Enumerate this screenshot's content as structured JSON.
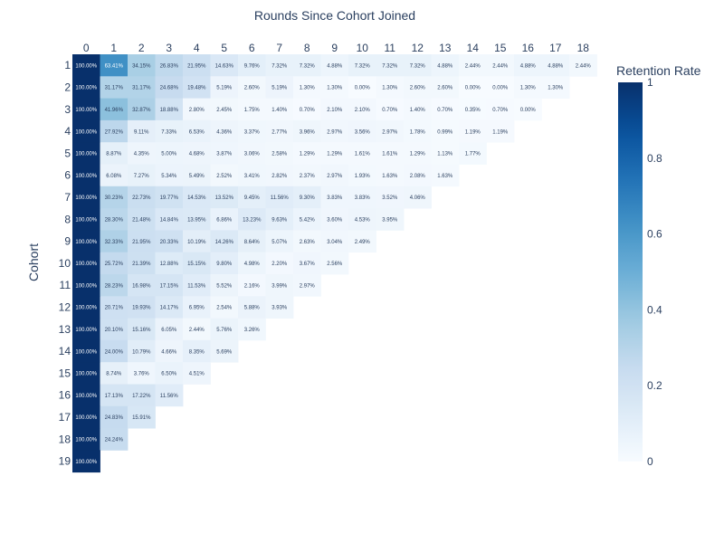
{
  "chart_data": {
    "type": "heatmap",
    "title": "Rounds Since Cohort Joined",
    "ylabel": "Cohort",
    "x": [
      0,
      1,
      2,
      3,
      4,
      5,
      6,
      7,
      8,
      9,
      10,
      11,
      12,
      13,
      14,
      15,
      16,
      17,
      18
    ],
    "y": [
      1,
      2,
      3,
      4,
      5,
      6,
      7,
      8,
      9,
      10,
      11,
      12,
      13,
      14,
      15,
      16,
      17,
      18,
      19
    ],
    "colorscale": "Blues",
    "colorbar": {
      "title": "Retention Rate",
      "range": [
        0,
        1
      ],
      "ticks": [
        "0",
        "0.2",
        "0.4",
        "0.6",
        "0.8",
        "1"
      ]
    },
    "labels": [
      [
        "100.00%",
        "63.41%",
        "34.15%",
        "26.83%",
        "21.95%",
        "14.63%",
        "9.76%",
        "7.32%",
        "7.32%",
        "4.88%",
        "7.32%",
        "7.32%",
        "7.32%",
        "4.88%",
        "2.44%",
        "2.44%",
        "4.88%",
        "4.88%",
        "2.44%"
      ],
      [
        "100.00%",
        "31.17%",
        "31.17%",
        "24.68%",
        "19.48%",
        "5.19%",
        "2.60%",
        "5.19%",
        "1.30%",
        "1.30%",
        "0.00%",
        "1.30%",
        "2.60%",
        "2.60%",
        "0.00%",
        "0.00%",
        "1.30%",
        "1.30%"
      ],
      [
        "100.00%",
        "41.96%",
        "32.87%",
        "18.88%",
        "2.80%",
        "2.45%",
        "1.75%",
        "1.40%",
        "0.70%",
        "2.10%",
        "2.10%",
        "0.70%",
        "1.40%",
        "0.70%",
        "0.35%",
        "0.70%",
        "0.00%"
      ],
      [
        "100.00%",
        "27.92%",
        "9.11%",
        "7.33%",
        "6.53%",
        "4.36%",
        "3.37%",
        "2.77%",
        "3.96%",
        "2.97%",
        "3.56%",
        "2.97%",
        "1.78%",
        "0.99%",
        "1.19%",
        "1.19%"
      ],
      [
        "100.00%",
        "8.87%",
        "4.35%",
        "5.00%",
        "4.68%",
        "3.87%",
        "3.06%",
        "2.58%",
        "1.29%",
        "1.29%",
        "1.61%",
        "1.61%",
        "1.29%",
        "1.13%",
        "1.77%"
      ],
      [
        "100.00%",
        "6.08%",
        "7.27%",
        "5.34%",
        "5.49%",
        "2.52%",
        "3.41%",
        "2.82%",
        "2.37%",
        "2.97%",
        "1.93%",
        "1.63%",
        "2.08%",
        "1.63%"
      ],
      [
        "100.00%",
        "30.23%",
        "22.73%",
        "19.77%",
        "14.53%",
        "13.52%",
        "9.45%",
        "11.56%",
        "9.30%",
        "3.83%",
        "3.83%",
        "3.52%",
        "4.06%"
      ],
      [
        "100.00%",
        "28.30%",
        "21.48%",
        "14.84%",
        "13.95%",
        "6.86%",
        "13.23%",
        "9.63%",
        "5.42%",
        "3.60%",
        "4.53%",
        "3.95%"
      ],
      [
        "100.00%",
        "32.33%",
        "21.95%",
        "20.33%",
        "10.19%",
        "14.26%",
        "8.64%",
        "5.07%",
        "2.63%",
        "3.04%",
        "2.49%"
      ],
      [
        "100.00%",
        "25.72%",
        "21.39%",
        "12.88%",
        "15.15%",
        "9.80%",
        "4.98%",
        "2.20%",
        "3.67%",
        "2.56%"
      ],
      [
        "100.00%",
        "28.23%",
        "16.98%",
        "17.15%",
        "11.53%",
        "5.52%",
        "2.16%",
        "3.99%",
        "2.97%"
      ],
      [
        "100.00%",
        "20.71%",
        "19.93%",
        "14.17%",
        "6.95%",
        "2.54%",
        "5.88%",
        "3.93%"
      ],
      [
        "100.00%",
        "20.10%",
        "15.16%",
        "6.05%",
        "2.44%",
        "5.76%",
        "3.26%"
      ],
      [
        "100.00%",
        "24.00%",
        "10.79%",
        "4.66%",
        "8.35%",
        "5.69%"
      ],
      [
        "100.00%",
        "8.74%",
        "3.76%",
        "6.50%",
        "4.51%"
      ],
      [
        "100.00%",
        "17.13%",
        "17.22%",
        "11.56%"
      ],
      [
        "100.00%",
        "24.83%",
        "15.91%"
      ],
      [
        "100.00%",
        "24.24%"
      ],
      [
        "100.00%"
      ]
    ]
  }
}
